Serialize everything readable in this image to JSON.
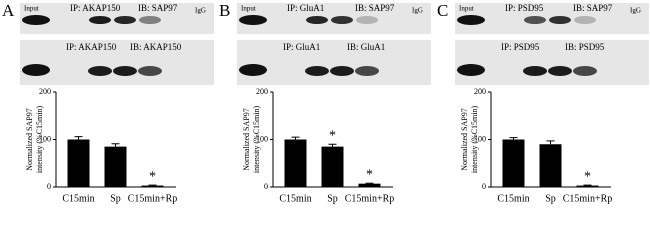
{
  "panels": [
    {
      "letter": "A",
      "blot1": {
        "input": "Input",
        "ip": "IP: AKAP150",
        "ib": "IB: SAP97",
        "igg": "IgG"
      },
      "blot2": {
        "ip": "IP: AKAP150",
        "ib": "IB: AKAP150"
      }
    },
    {
      "letter": "B",
      "blot1": {
        "input": "Input",
        "ip": "IP: GluA1",
        "ib": "IB: SAP97",
        "igg": "IgG"
      },
      "blot2": {
        "ip": "IP: GluA1",
        "ib": "IB: GluA1"
      }
    },
    {
      "letter": "C",
      "blot1": {
        "input": "Input",
        "ip": "IP: PSD95",
        "ib": "IB: SAP97",
        "igg": "IgG"
      },
      "blot2": {
        "ip": "IP: PSD95",
        "ib": "IB: PSD95"
      }
    }
  ],
  "chart_data": [
    {
      "type": "bar",
      "ylabel": [
        "Normalized SAP97",
        "intensity (%C15min)"
      ],
      "categories": [
        "C15min",
        "Sp",
        "C15min+Rp"
      ],
      "values": [
        100,
        85,
        3
      ],
      "errors": [
        6,
        6,
        1
      ],
      "markers": [
        null,
        null,
        "*"
      ],
      "color": "#000000",
      "ylim": [
        0,
        200
      ],
      "yticks": [
        0,
        100,
        200
      ]
    },
    {
      "type": "bar",
      "ylabel": [
        "Normalized SAP97",
        "intensity (%C15min)"
      ],
      "categories": [
        "C15min",
        "Sp",
        "C15min+Rp"
      ],
      "values": [
        100,
        85,
        7
      ],
      "errors": [
        5,
        5,
        1
      ],
      "markers": [
        null,
        "*",
        "*"
      ],
      "color": "#000000",
      "ylim": [
        0,
        200
      ],
      "yticks": [
        0,
        100,
        200
      ]
    },
    {
      "type": "bar",
      "ylabel": [
        "Normalized SAP97",
        "intensity (%C15min)"
      ],
      "categories": [
        "C15min",
        "Sp",
        "C15min+Rp"
      ],
      "values": [
        100,
        90,
        3
      ],
      "errors": [
        4,
        7,
        1
      ],
      "markers": [
        null,
        null,
        "*"
      ],
      "color": "#000000",
      "ylim": [
        0,
        200
      ],
      "yticks": [
        0,
        100,
        200
      ]
    }
  ]
}
